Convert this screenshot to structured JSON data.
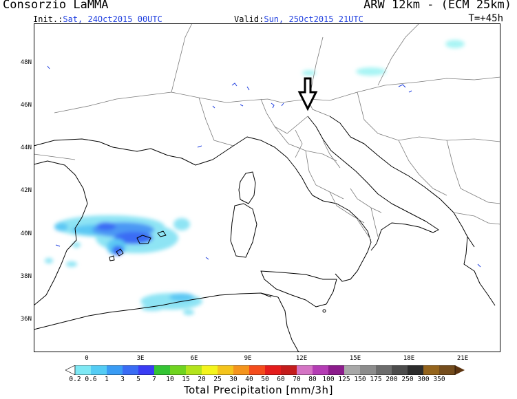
{
  "header": {
    "producer": "Consorzio LaMMA",
    "model": "ARW 12km - (ECM 25km)",
    "init_label": "Init.:",
    "init_value": "Sat, 24Oct2015 00UTC",
    "valid_label": "Valid:",
    "valid_value": "Sun, 25Oct2015 21UTC",
    "forecast_step": "T=+45h"
  },
  "axes": {
    "lat_labels": [
      "48N",
      "46N",
      "44N",
      "42N",
      "40N",
      "38N",
      "36N"
    ],
    "lon_labels": [
      "0",
      "3E",
      "6E",
      "9E",
      "12E",
      "15E",
      "18E",
      "21E"
    ]
  },
  "colorbar": {
    "labels": [
      "0.2",
      "0.6",
      "1",
      "3",
      "5",
      "7",
      "10",
      "15",
      "20",
      "25",
      "30",
      "40",
      "50",
      "60",
      "70",
      "80",
      "100",
      "125",
      "150",
      "175",
      "200",
      "250",
      "300",
      "350"
    ],
    "colors": [
      "#a8f4f4",
      "#7ee8f4",
      "#54ccf4",
      "#3a9cf4",
      "#3a6cf4",
      "#3a3cf4",
      "#34c434",
      "#70d420",
      "#b4e41c",
      "#f4f41c",
      "#f4c41c",
      "#f4941c",
      "#f44c1c",
      "#e41c1c",
      "#c41c1c",
      "#d474c4",
      "#b43cb4",
      "#8c1c8c",
      "#a8a8a8",
      "#8c8c8c",
      "#6c6c6c",
      "#4c4c4c",
      "#2c2c2c",
      "#94641c",
      "#744c1c",
      "#5c3410"
    ],
    "title": "Total Precipitation [mm/3h]"
  },
  "icons": {
    "marker": "down-arrow-icon"
  }
}
